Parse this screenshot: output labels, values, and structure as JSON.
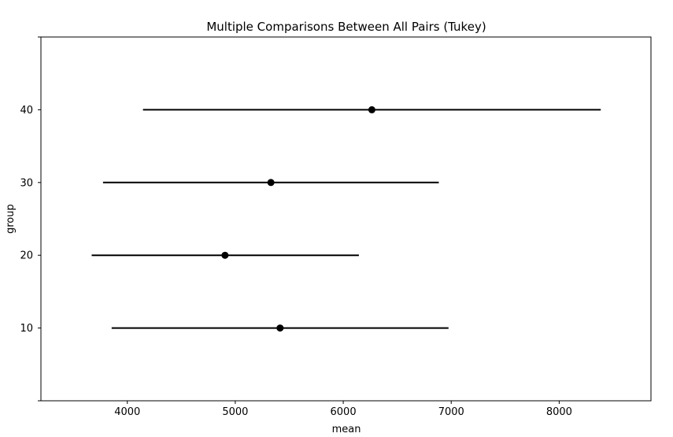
{
  "chart_data": {
    "type": "scatter",
    "title": "Multiple Comparisons Between All Pairs (Tukey)",
    "xlabel": "mean",
    "ylabel": "group",
    "xlim": [
      3200,
      8850
    ],
    "ylim": [
      0,
      50
    ],
    "x_ticks": [
      4000,
      5000,
      6000,
      7000,
      8000
    ],
    "y_ticks": [
      10,
      20,
      30,
      40
    ],
    "grid": false,
    "groups": [
      {
        "group": "10",
        "mean": 5415,
        "lower": 3855,
        "upper": 6975
      },
      {
        "group": "20",
        "mean": 4905,
        "lower": 3670,
        "upper": 6145
      },
      {
        "group": "30",
        "mean": 5330,
        "lower": 3775,
        "upper": 6885
      },
      {
        "group": "40",
        "mean": 6265,
        "lower": 4145,
        "upper": 8385
      }
    ]
  }
}
